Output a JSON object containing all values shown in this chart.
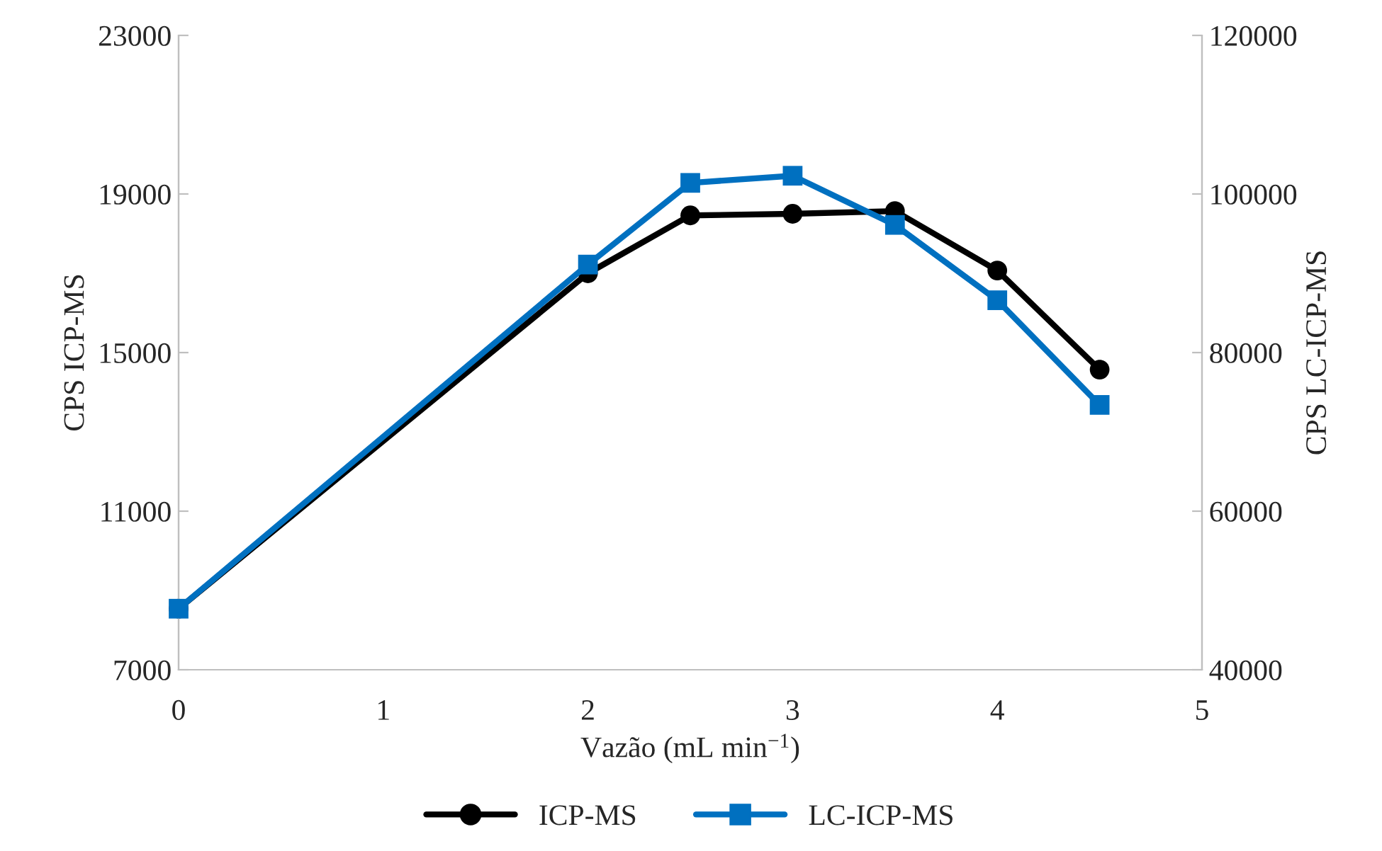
{
  "chart_data": {
    "type": "line",
    "xlabel": "Vazão (mL min$^{−1}$)",
    "ylabel": "CPS ICP-MS",
    "y2label": "CPS LC-ICP-MS",
    "x": [
      0,
      2,
      2.5,
      3,
      3.5,
      4,
      4.5
    ],
    "series": [
      {
        "name": "ICP-MS",
        "color": "#000000",
        "marker": "circle",
        "values": [
          8540,
          17000,
          18460,
          18500,
          18570,
          17070,
          14570
        ]
      },
      {
        "name": "LC-ICP-MS",
        "color": "#0070c0",
        "marker": "square",
        "axis": "y2",
        "values": [
          47700,
          91100,
          101400,
          102300,
          96100,
          86600,
          73400
        ]
      }
    ],
    "xlim": [
      0,
      5
    ],
    "xticks": [
      0,
      1,
      2,
      3,
      4,
      5
    ],
    "ylim": [
      7000,
      23000
    ],
    "yticks": [
      7000,
      11000,
      15000,
      19000,
      23000
    ],
    "y2lim": [
      40000,
      120000
    ],
    "y2ticks": [
      40000,
      60000,
      80000,
      100000,
      120000
    ],
    "grid": false,
    "legend": "bottom",
    "line_style": "solid"
  }
}
